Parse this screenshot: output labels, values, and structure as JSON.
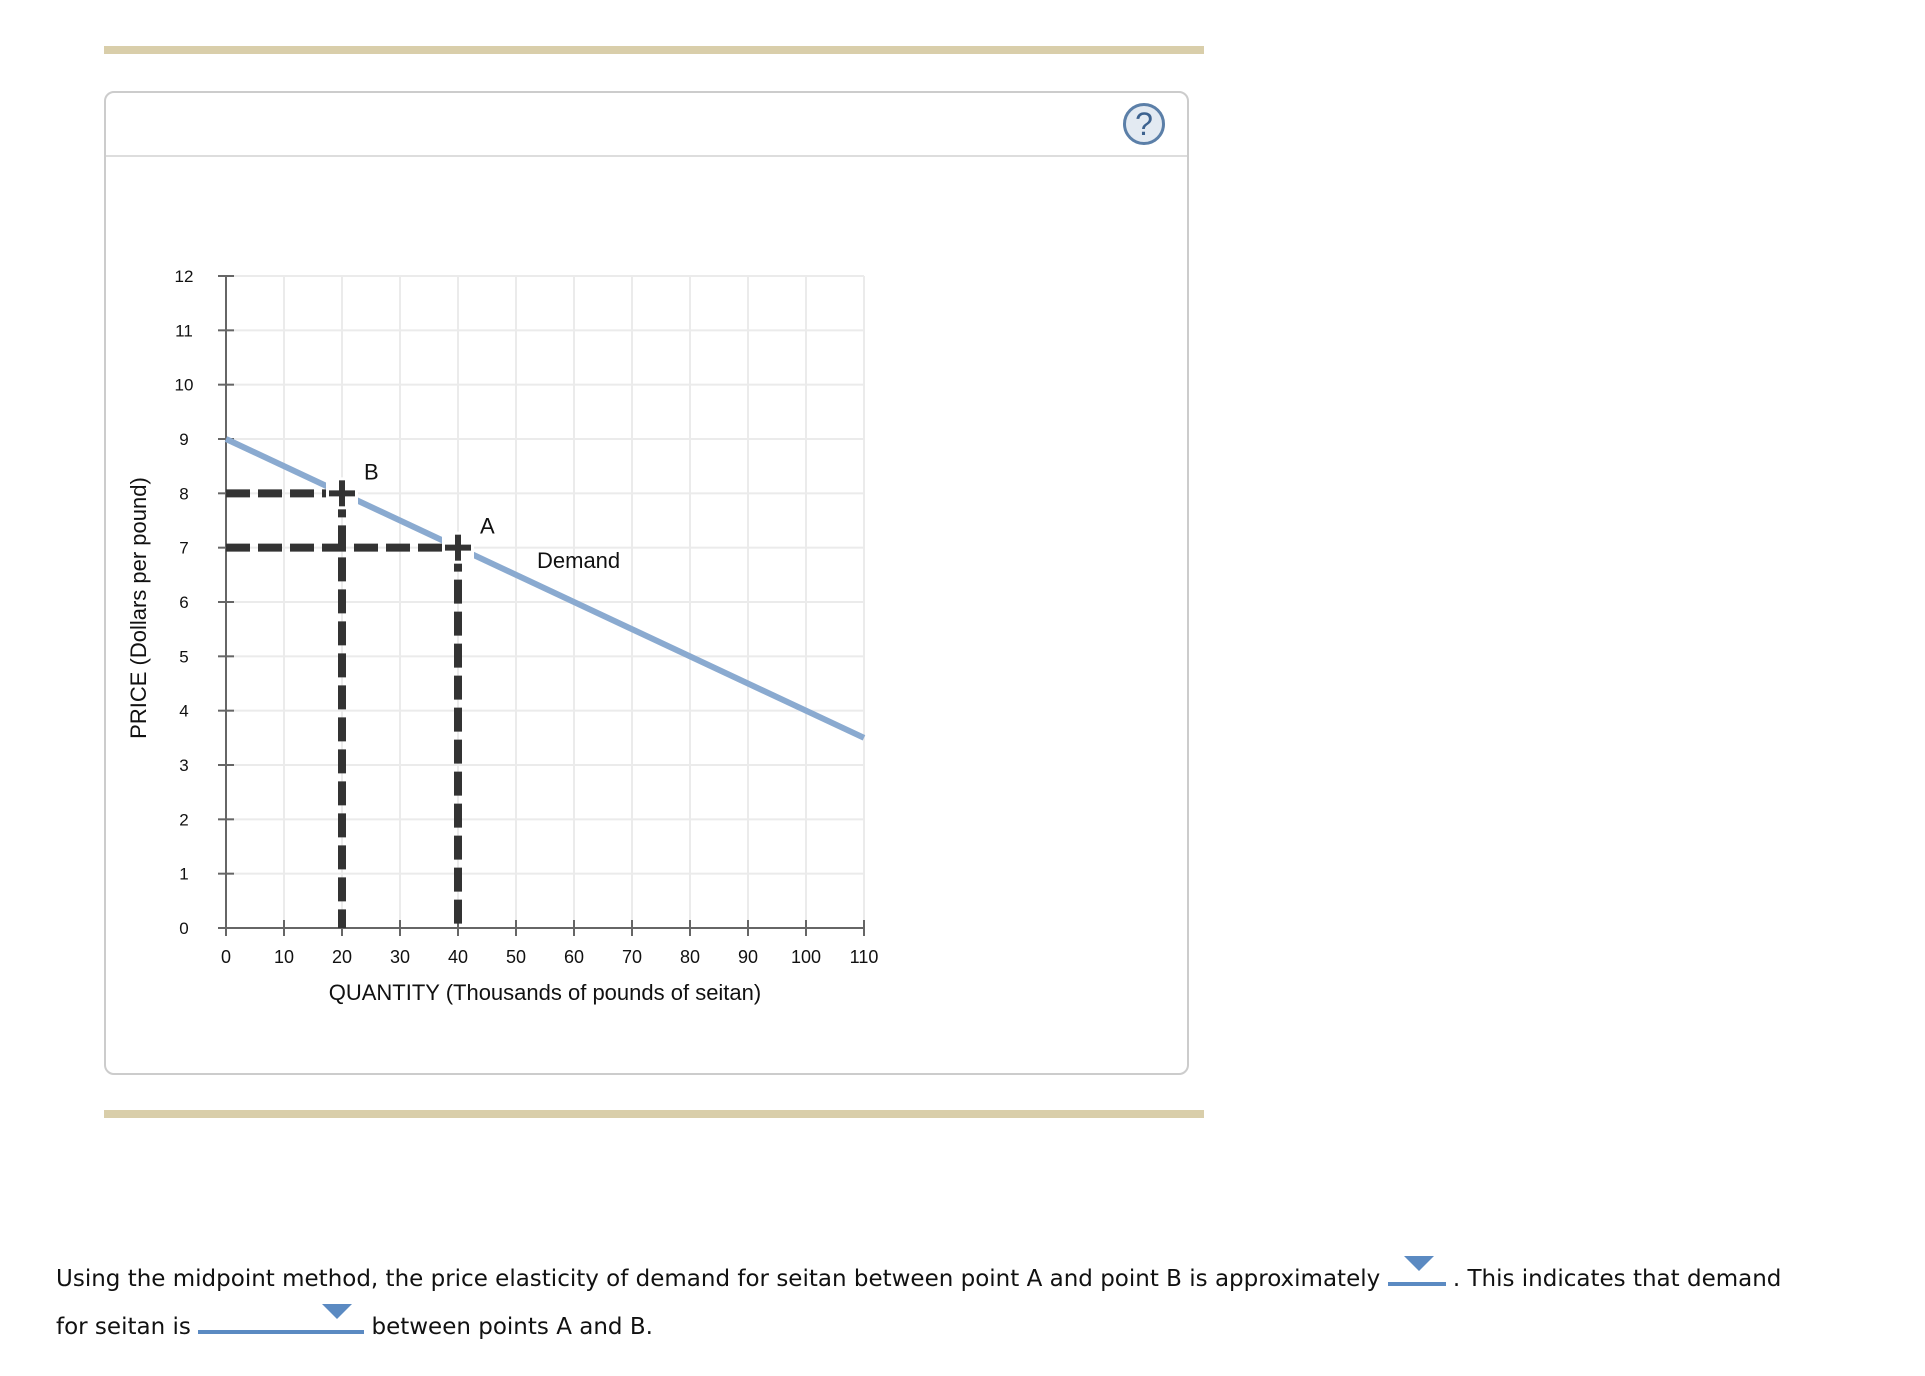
{
  "help_icon": "?",
  "chart_data": {
    "type": "line",
    "title": "",
    "xlabel": "QUANTITY (Thousands of pounds of seitan)",
    "ylabel": "PRICE (Dollars per pound)",
    "xlim": [
      0,
      110
    ],
    "ylim": [
      0,
      12
    ],
    "x_ticks": [
      "0",
      "10",
      "20",
      "30",
      "40",
      "50",
      "60",
      "70",
      "80",
      "90",
      "100",
      "110"
    ],
    "y_ticks": [
      "0",
      "1",
      "2",
      "3",
      "4",
      "5",
      "6",
      "7",
      "8",
      "9",
      "10",
      "11",
      "12"
    ],
    "grid": true,
    "series": [
      {
        "name": "Demand",
        "x": [
          0,
          110
        ],
        "y": [
          9,
          3.5
        ],
        "color": "#8aaad0"
      }
    ],
    "points": [
      {
        "label": "A",
        "x": 40,
        "y": 7
      },
      {
        "label": "B",
        "x": 20,
        "y": 8
      }
    ],
    "annotations": [
      "Demand",
      "A",
      "B"
    ]
  },
  "question": {
    "line1_before": "Using the midpoint method, the price elasticity of demand for seitan between point A and point B is approximately",
    "line1_after": ". This indicates that demand",
    "line2_before": "for seitan is",
    "line2_after": "between points A and B.",
    "dropdown1_value": "",
    "dropdown2_value": ""
  },
  "colors": {
    "accent_bar": "#d9ceaa",
    "dropdown": "#5b8ac2",
    "demand_line": "#8aaad0",
    "dashed": "#333333"
  }
}
